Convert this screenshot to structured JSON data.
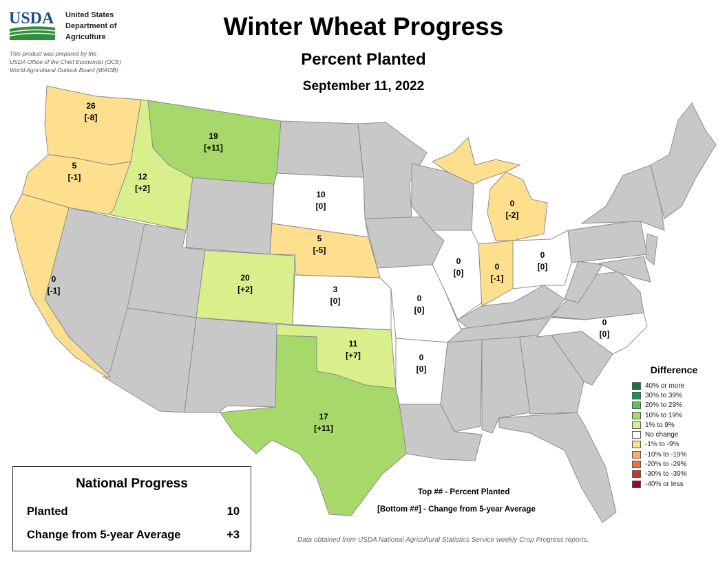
{
  "header": {
    "logo_text": "USDA",
    "agency_lines": [
      "United States",
      "Department of",
      "Agriculture"
    ],
    "prepared_by": [
      "This product was prepared by the",
      "USDA Office of the Chief Economist (OCE)",
      "World Agricultural Outlook Board (WAOB)"
    ]
  },
  "title": "Winter Wheat Progress",
  "subtitle": "Percent Planted",
  "date": "September 11, 2022",
  "colors": {
    "nodata": "#c8c8c8",
    "no_change": "#ffffff",
    "light_green": "#d9ef8b",
    "green": "#a6d96a",
    "light_orange": "#fedf8e"
  },
  "states": [
    {
      "name": "Washington",
      "planted": "26",
      "change": "[-8]",
      "fill": "#fedf8e"
    },
    {
      "name": "Oregon",
      "planted": "5",
      "change": "[-1]",
      "fill": "#fedf8e"
    },
    {
      "name": "California",
      "planted": "0",
      "change": "[-1]",
      "fill": "#fedf8e"
    },
    {
      "name": "Idaho",
      "planted": "12",
      "change": "[+2]",
      "fill": "#d9ef8b"
    },
    {
      "name": "Montana",
      "planted": "19",
      "change": "[+11]",
      "fill": "#a6d96a"
    },
    {
      "name": "South Dakota",
      "planted": "10",
      "change": "[0]",
      "fill": "#ffffff"
    },
    {
      "name": "Nebraska",
      "planted": "5",
      "change": "[-5]",
      "fill": "#fedf8e"
    },
    {
      "name": "Colorado",
      "planted": "20",
      "change": "[+2]",
      "fill": "#d9ef8b"
    },
    {
      "name": "Kansas",
      "planted": "3",
      "change": "[0]",
      "fill": "#ffffff"
    },
    {
      "name": "Oklahoma",
      "planted": "11",
      "change": "[+7]",
      "fill": "#d9ef8b"
    },
    {
      "name": "Texas",
      "planted": "17",
      "change": "[+11]",
      "fill": "#a6d96a"
    },
    {
      "name": "Missouri",
      "planted": "0",
      "change": "[0]",
      "fill": "#ffffff"
    },
    {
      "name": "Arkansas",
      "planted": "0",
      "change": "[0]",
      "fill": "#ffffff"
    },
    {
      "name": "Illinois",
      "planted": "0",
      "change": "[0]",
      "fill": "#ffffff"
    },
    {
      "name": "Indiana",
      "planted": "0",
      "change": "[-1]",
      "fill": "#fedf8e"
    },
    {
      "name": "Ohio",
      "planted": "0",
      "change": "[0]",
      "fill": "#ffffff"
    },
    {
      "name": "Michigan",
      "planted": "0",
      "change": "[-2]",
      "fill": "#fedf8e"
    },
    {
      "name": "North Carolina",
      "planted": "0",
      "change": "[0]",
      "fill": "#ffffff"
    }
  ],
  "legend": {
    "title": "Difference",
    "items": [
      {
        "label": "40% or more",
        "color": "#1a7040"
      },
      {
        "label": "30% to 39%",
        "color": "#1a9850"
      },
      {
        "label": "20% to 29%",
        "color": "#66bd63"
      },
      {
        "label": "10% to 19%",
        "color": "#a6d96a"
      },
      {
        "label": "1% to 9%",
        "color": "#d9ef8b"
      },
      {
        "label": "No change",
        "color": "#ffffff"
      },
      {
        "label": "-1% to -9%",
        "color": "#fedf8e"
      },
      {
        "label": "-10% to -19%",
        "color": "#fdae61"
      },
      {
        "label": "-20% to -29%",
        "color": "#f46d43"
      },
      {
        "label": "-30% to -39%",
        "color": "#d73027"
      },
      {
        "label": "-40% or less",
        "color": "#a50026"
      }
    ]
  },
  "key": {
    "line1": "Top ## - Percent Planted",
    "line2": "[Bottom ##] - Change from 5-year Average"
  },
  "national": {
    "title": "National Progress",
    "planted_label": "Planted",
    "planted_value": "10",
    "change_label": "Change from 5-year Average",
    "change_value": "+3"
  },
  "source": "Data obtained from USDA National Agricultural Statistics Service weekly Crop Progress reports."
}
